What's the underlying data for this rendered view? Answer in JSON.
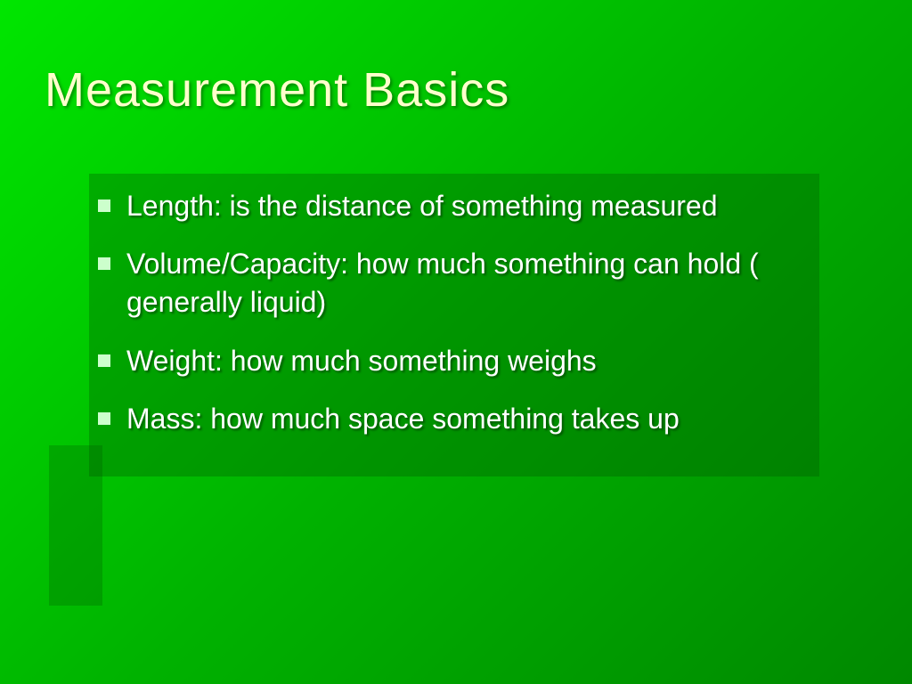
{
  "slide": {
    "title": "Measurement Basics",
    "title_color": "#ffffcc",
    "title_fontsize": 54,
    "background_gradient_start": "#00e600",
    "background_gradient_end": "#008800",
    "bullet_color": "#ccffcc",
    "text_color": "#ffffff",
    "text_fontsize": 32,
    "bullets": [
      "Length: is the distance of something measured",
      "Volume/Capacity:  how much something can hold ( generally liquid)",
      "Weight:  how much something weighs",
      "Mass: how much space something takes up"
    ]
  }
}
